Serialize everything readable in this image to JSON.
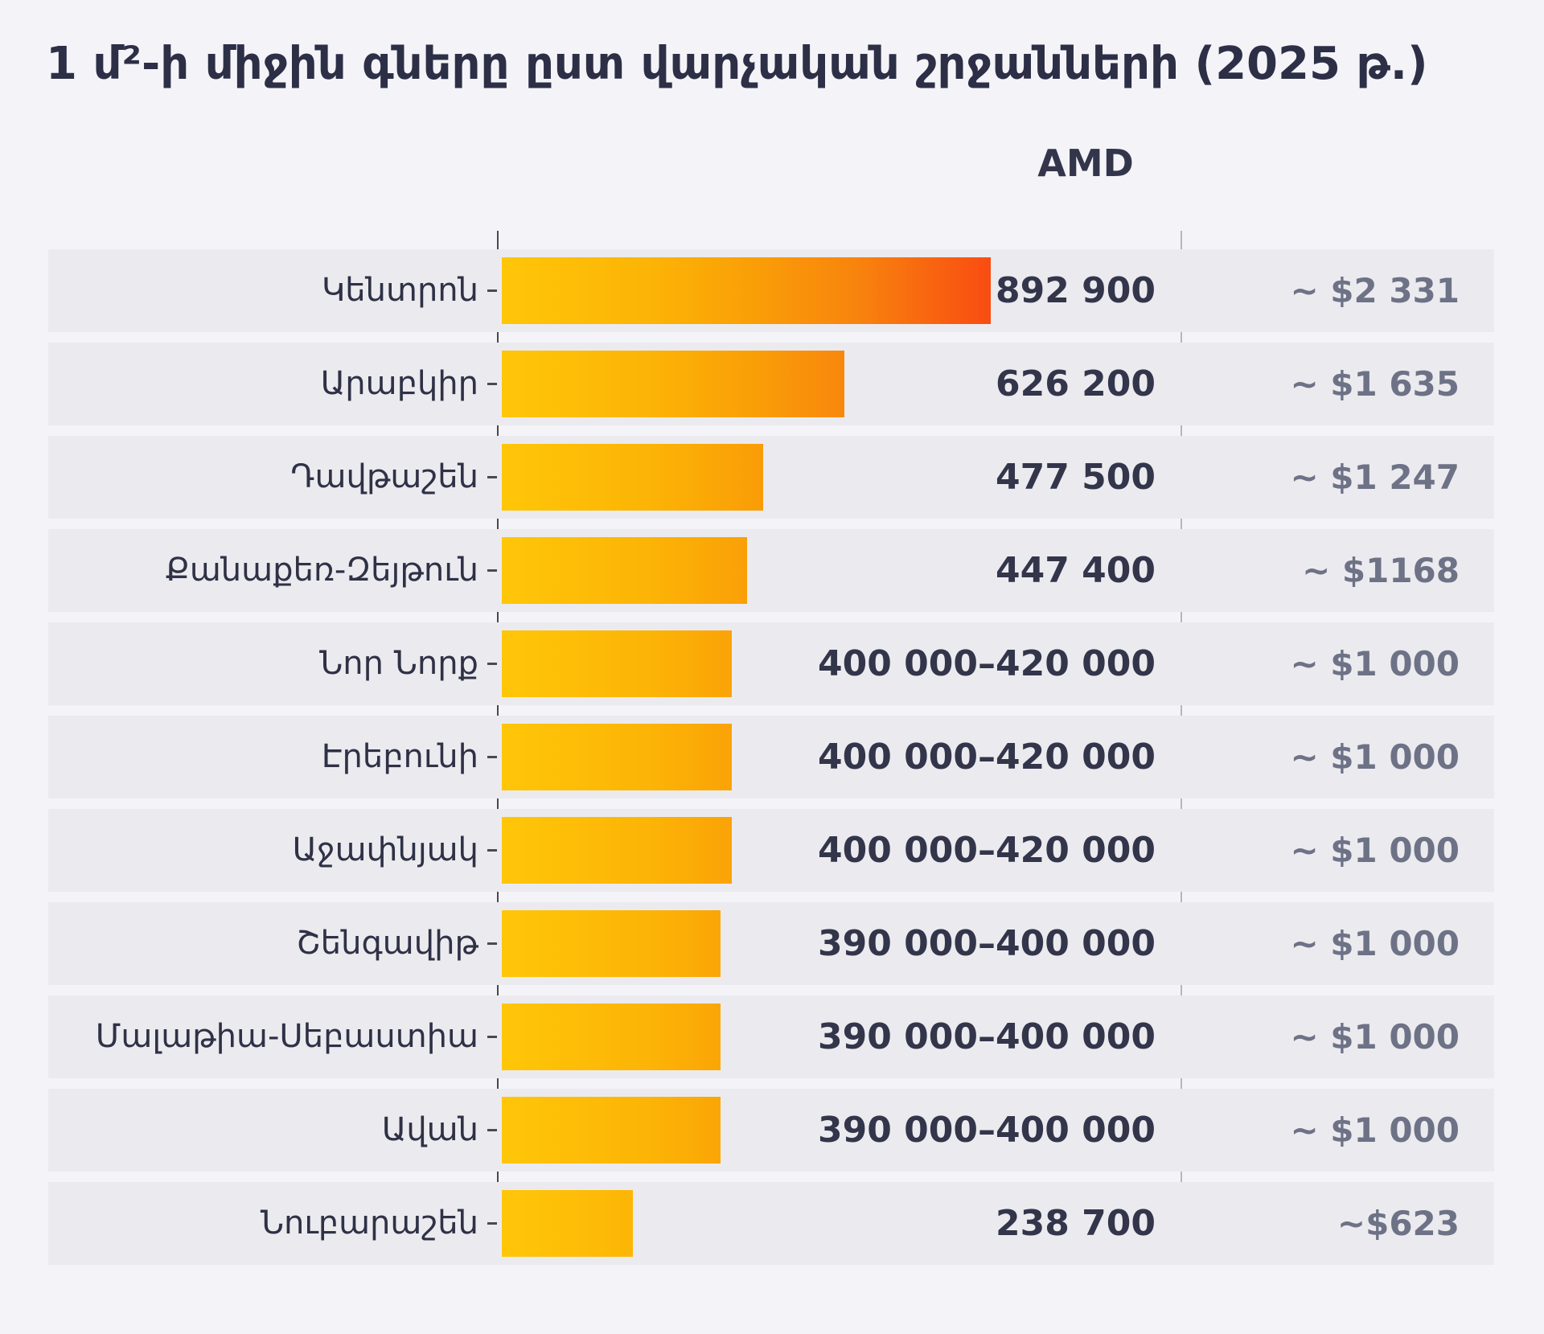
{
  "title": "1 մ²-ի միջին գները ըստ վարչական շրջանների (2025 թ.)",
  "currency_header": "AMD",
  "chart_data": {
    "type": "bar",
    "orientation": "horizontal",
    "title": "1 մ²-ի միջին գները ըստ վարչական շրջանների (2025 թ.)",
    "value_column_header": "AMD",
    "legend_position": "none",
    "grid": false,
    "axis_range_amd": [
      0,
      892900
    ],
    "colors": {
      "bar_gradient_start": "#ffc608",
      "bar_gradient_mid": "#faa007",
      "bar_gradient_end": "#f94c12",
      "row_band": "#ebebef",
      "background": "#f4f4f8",
      "title_text": "#2d2f47",
      "amd_value_text": "#33354b",
      "usd_value_text": "#6e7286"
    },
    "rows": [
      {
        "label": "Կենտրոն",
        "amd_label": "892 900",
        "usd_label": "~ $2 331",
        "bar_value": 892900
      },
      {
        "label": "Արաբկիր",
        "amd_label": "626 200",
        "usd_label": "~ $1 635",
        "bar_value": 626200
      },
      {
        "label": "Դավթաշեն",
        "amd_label": "477 500",
        "usd_label": "~ $1 247",
        "bar_value": 477500
      },
      {
        "label": "Քանաքեռ-Զեյթուն",
        "amd_label": "447 400",
        "usd_label": "~ $1168",
        "bar_value": 447400
      },
      {
        "label": "Նոր Նորք",
        "amd_label": "400 000–420 000",
        "usd_label": "~ $1 000",
        "bar_value": 420000
      },
      {
        "label": "Էրեբունի",
        "amd_label": "400 000–420 000",
        "usd_label": "~ $1 000",
        "bar_value": 420000
      },
      {
        "label": "Աջափնյակ",
        "amd_label": "400 000–420 000",
        "usd_label": "~ $1 000",
        "bar_value": 420000
      },
      {
        "label": "Շենգավիթ",
        "amd_label": "390 000–400 000",
        "usd_label": "~ $1 000",
        "bar_value": 400000
      },
      {
        "label": "Մալաթիա-Սեբաստիա",
        "amd_label": "390 000–400 000",
        "usd_label": "~ $1 000",
        "bar_value": 400000
      },
      {
        "label": "Ավան",
        "amd_label": "390 000–400 000",
        "usd_label": "~ $1 000",
        "bar_value": 400000
      },
      {
        "label": "Նուբարաշեն",
        "amd_label": "238 700",
        "usd_label": "~$623",
        "bar_value": 238700
      }
    ]
  }
}
